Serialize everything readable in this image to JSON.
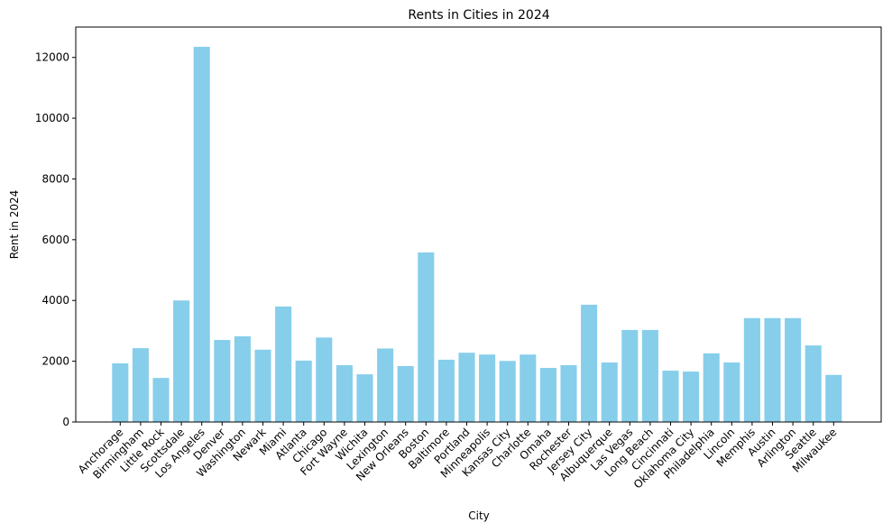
{
  "chart_data": {
    "type": "bar",
    "title": "Rents in Cities in 2024",
    "xlabel": "City",
    "ylabel": "Rent in 2024",
    "ylim": [
      0,
      13000
    ],
    "yticks": [
      0,
      2000,
      4000,
      6000,
      8000,
      10000,
      12000
    ],
    "grid": false,
    "bar_color": "#87ceeb",
    "categories": [
      "Anchorage",
      "Birmingham",
      "Little Rock",
      "Scottsdale",
      "Los Angeles",
      "Denver",
      "Washington",
      "Newark",
      "Miami",
      "Atlanta",
      "Chicago",
      "Fort Wayne",
      "Wichita",
      "Lexington",
      "New Orleans",
      "Boston",
      "Baltimore",
      "Portland",
      "Minneapolis",
      "Kansas City",
      "Charlotte",
      "Omaha",
      "Rochester",
      "Jersey City",
      "Albuquerque",
      "Las Vegas",
      "Long Beach",
      "Cincinnati",
      "Oklahoma City",
      "Philadelphia",
      "Lincoln",
      "Memphis",
      "Austin",
      "Arlington",
      "Seattle",
      "Milwaukee"
    ],
    "values": [
      1930,
      2430,
      1450,
      4000,
      12350,
      2700,
      2820,
      2380,
      3800,
      2020,
      2780,
      1870,
      1570,
      2420,
      1840,
      5580,
      2050,
      2280,
      2220,
      2010,
      2220,
      1780,
      1870,
      3860,
      1960,
      3030,
      3030,
      1690,
      1660,
      2260,
      1960,
      3420,
      3420,
      3420,
      2520,
      1550
    ]
  }
}
